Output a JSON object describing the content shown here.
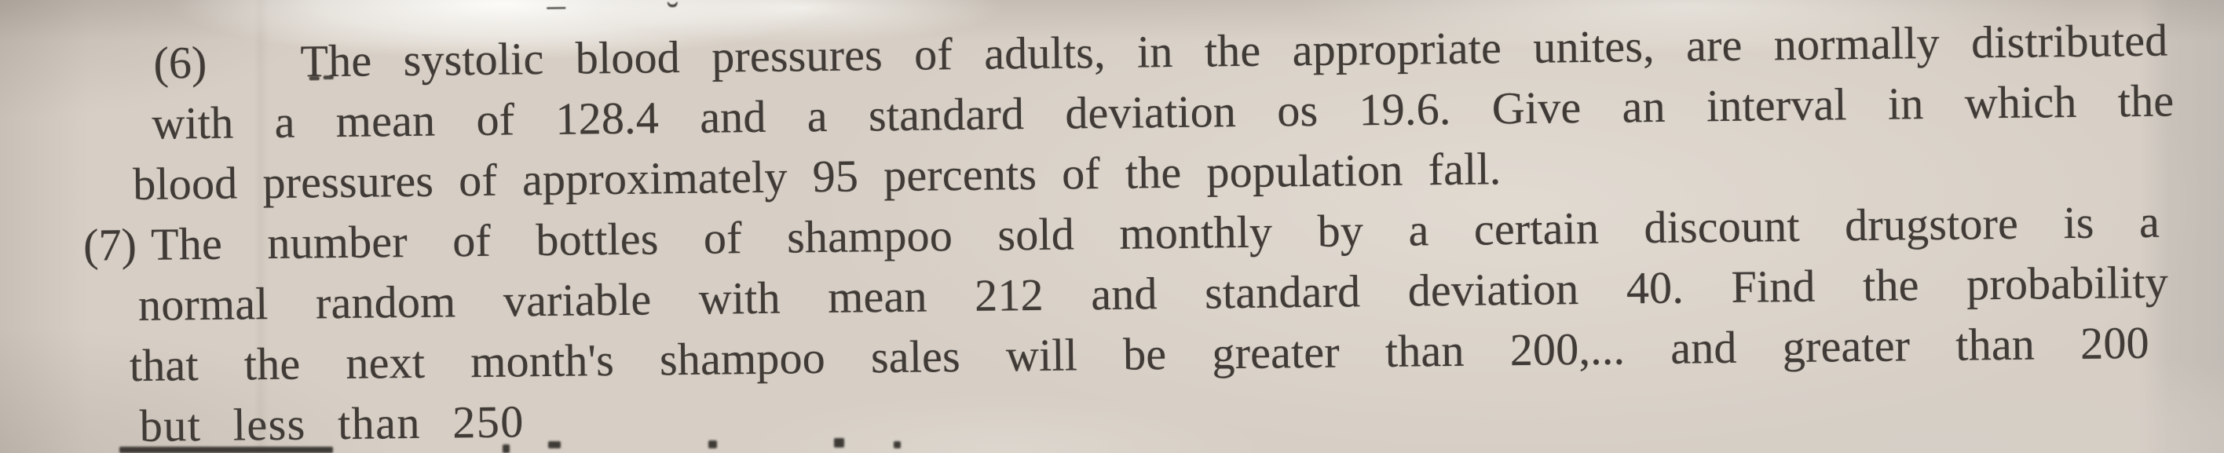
{
  "document": {
    "type": "photographed textbook problem sheet",
    "problems": [
      {
        "marker": "(6)",
        "lines": [
          "The systolic blood pressures of adults, in the appropriate unites, are normally distributed",
          "with a mean of 128.4 and a standard deviation os 19.6. Give an interval in which the",
          "blood pressures of approximately 95 percents of the population fall."
        ]
      },
      {
        "marker": "(7)",
        "lines": [
          "The number of bottles of shampoo sold monthly by a certain discount drugstore is a",
          "normal random variable with mean 212 and standard deviation 40. Find the probability",
          "that the next month's shampoo sales will be greater than 200,... and greater than 200",
          "but less than 250"
        ]
      }
    ],
    "artifacts": {
      "macron_glyph": "¯",
      "breve_glyph": "˘"
    },
    "paper_color": "#d7cfc5",
    "ink_color": "#403b37"
  }
}
